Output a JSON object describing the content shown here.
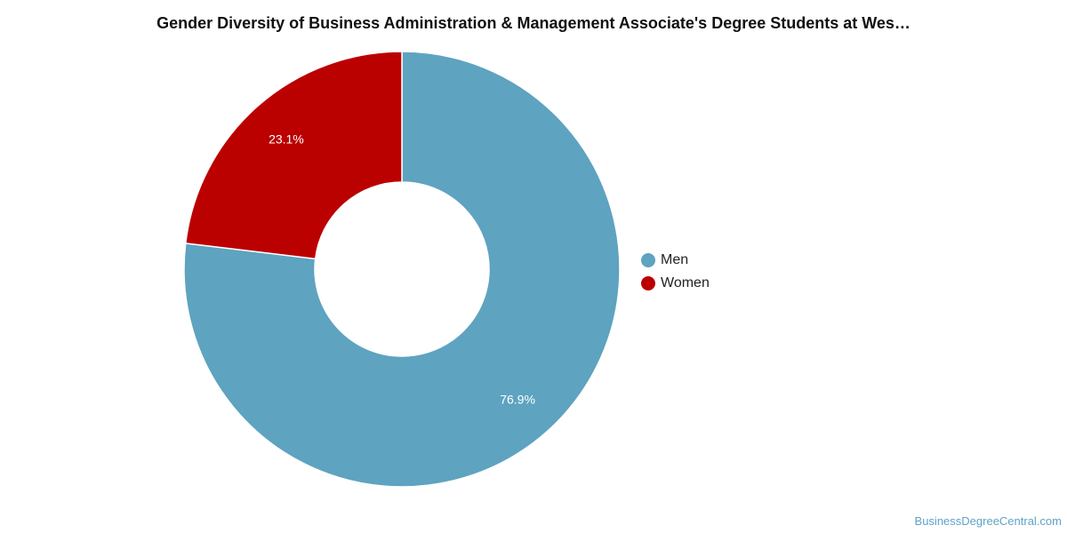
{
  "chart_data": {
    "type": "pie",
    "variant": "donut",
    "title": "Gender Diversity of Business Administration & Management Associate's Degree Students at Wes…",
    "categories": [
      "Men",
      "Women"
    ],
    "values": [
      76.9,
      23.1
    ],
    "data_labels": [
      "76.9%",
      "23.1%"
    ],
    "colors": [
      "#5ea3c0",
      "#bb0000"
    ],
    "legend_position": "right",
    "start_angle_deg": 0,
    "direction": "clockwise"
  },
  "legend": {
    "items": [
      {
        "label": "Men",
        "color": "#5ea3c0"
      },
      {
        "label": "Women",
        "color": "#bb0000"
      }
    ]
  },
  "credit": {
    "text": "BusinessDegreeCentral.com"
  }
}
